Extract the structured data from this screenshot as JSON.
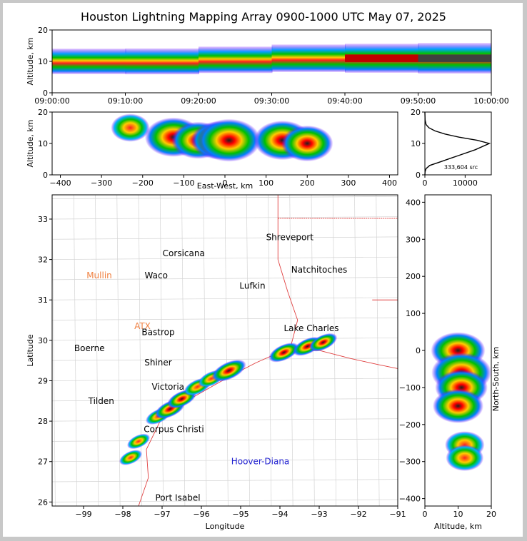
{
  "title": "Houston Lightning Mapping Array 0900-1000 UTC May 07, 2025",
  "chart_data": [
    {
      "name": "altitude-time",
      "type": "heatmap",
      "xlabel": "",
      "ylabel": "Altitude, km",
      "x_ticks": [
        "09:00:00",
        "09:10:00",
        "09:20:00",
        "09:30:00",
        "09:40:00",
        "09:50:00",
        "10:00:00"
      ],
      "xlim": [
        "09:00:00",
        "10:00:00"
      ],
      "ylim": [
        0,
        20
      ],
      "y_ticks": [
        0,
        10,
        20
      ],
      "band": [
        {
          "t": 0,
          "z": 10,
          "intensity": 0.45
        },
        {
          "t": 10,
          "z": 10,
          "intensity": 0.5
        },
        {
          "t": 20,
          "z": 10.5,
          "intensity": 0.55
        },
        {
          "t": 30,
          "z": 11,
          "intensity": 0.65
        },
        {
          "t": 40,
          "z": 11,
          "intensity": 0.8
        },
        {
          "t": 50,
          "z": 11,
          "intensity": 0.95
        },
        {
          "t": 60,
          "z": 11,
          "intensity": 1.0
        }
      ]
    },
    {
      "name": "altitude-eastwest",
      "type": "heatmap",
      "xlabel": "East-West, km",
      "ylabel": "Altitude, km",
      "xlim": [
        -420,
        420
      ],
      "ylim": [
        0,
        20
      ],
      "x_ticks": [
        -400,
        -300,
        -200,
        -100,
        0,
        100,
        200,
        300,
        400
      ],
      "y_ticks": [
        0,
        10,
        20
      ],
      "cells": [
        {
          "x": -230,
          "z": 15,
          "intensity": 0.35
        },
        {
          "x": -125,
          "z": 12,
          "intensity": 0.85
        },
        {
          "x": -65,
          "z": 11,
          "intensity": 0.75
        },
        {
          "x": -15,
          "z": 11,
          "intensity": 0.8
        },
        {
          "x": 10,
          "z": 11,
          "intensity": 1.0
        },
        {
          "x": 140,
          "z": 11,
          "intensity": 0.85
        },
        {
          "x": 200,
          "z": 10,
          "intensity": 0.7
        }
      ]
    },
    {
      "name": "altitude-histogram",
      "type": "line",
      "xlabel": "",
      "ylabel": "",
      "xlim": [
        0,
        16500
      ],
      "ylim": [
        0,
        20
      ],
      "x_ticks": [
        0,
        10000
      ],
      "y_ticks": [
        0,
        10,
        20
      ],
      "annotation": "333,604 src",
      "x": [
        0,
        50,
        300,
        1200,
        3500,
        8000,
        12500,
        16000,
        13000,
        8500,
        5000,
        2500,
        1000,
        300,
        60,
        0
      ],
      "y": [
        0,
        1,
        2,
        3,
        4,
        6,
        8,
        10,
        11,
        12,
        13,
        14,
        15,
        16,
        17.5,
        20
      ]
    },
    {
      "name": "plan-view",
      "type": "scatter",
      "xlabel": "Longitude",
      "ylabel": "Latitude",
      "xlim": [
        -99.8,
        -91
      ],
      "ylim": [
        25.9,
        33.6
      ],
      "x_ticks": [
        -99,
        -98,
        -97,
        -96,
        -95,
        -94,
        -93,
        -92,
        -91
      ],
      "y_ticks": [
        26,
        27,
        28,
        29,
        30,
        31,
        32,
        33
      ],
      "cities": [
        {
          "name": "Shreveport",
          "lon": -93.75,
          "lat": 32.55,
          "color": "#000000"
        },
        {
          "name": "Corsicana",
          "lon": -96.45,
          "lat": 32.15,
          "color": "#000000"
        },
        {
          "name": "Natchitoches",
          "lon": -93.0,
          "lat": 31.75,
          "color": "#000000"
        },
        {
          "name": "Mullin",
          "lon": -98.6,
          "lat": 31.6,
          "color": "#f08040"
        },
        {
          "name": "Waco",
          "lon": -97.15,
          "lat": 31.6,
          "color": "#000000"
        },
        {
          "name": "Lufkin",
          "lon": -94.7,
          "lat": 31.35,
          "color": "#000000"
        },
        {
          "name": "ATX",
          "lon": -97.5,
          "lat": 30.35,
          "color": "#f08040"
        },
        {
          "name": "Bastrop",
          "lon": -97.1,
          "lat": 30.2,
          "color": "#000000"
        },
        {
          "name": "Lake Charles",
          "lon": -93.2,
          "lat": 30.3,
          "color": "#000000"
        },
        {
          "name": "Boerne",
          "lon": -98.85,
          "lat": 29.8,
          "color": "#000000"
        },
        {
          "name": "Shiner",
          "lon": -97.1,
          "lat": 29.45,
          "color": "#000000"
        },
        {
          "name": "Victoria",
          "lon": -96.85,
          "lat": 28.85,
          "color": "#000000"
        },
        {
          "name": "Tilden",
          "lon": -98.55,
          "lat": 28.5,
          "color": "#000000"
        },
        {
          "name": "Corpus Christi",
          "lon": -96.7,
          "lat": 27.8,
          "color": "#000000"
        },
        {
          "name": "Hoover-Diana",
          "lon": -94.5,
          "lat": 27.0,
          "color": "#2020d0"
        },
        {
          "name": "Port Isabel",
          "lon": -96.6,
          "lat": 26.1,
          "color": "#000000"
        }
      ],
      "storm_path": [
        {
          "lon": -97.1,
          "lat": 28.12,
          "intensity": 0.55
        },
        {
          "lon": -96.8,
          "lat": 28.3,
          "intensity": 0.8
        },
        {
          "lon": -96.5,
          "lat": 28.55,
          "intensity": 0.75
        },
        {
          "lon": -96.1,
          "lat": 28.85,
          "intensity": 0.65
        },
        {
          "lon": -95.75,
          "lat": 29.05,
          "intensity": 0.6
        },
        {
          "lon": -95.3,
          "lat": 29.25,
          "intensity": 1.0
        },
        {
          "lon": -93.9,
          "lat": 29.7,
          "intensity": 0.8
        },
        {
          "lon": -93.3,
          "lat": 29.85,
          "intensity": 0.75
        },
        {
          "lon": -92.9,
          "lat": 29.95,
          "intensity": 0.7
        },
        {
          "lon": -97.6,
          "lat": 27.5,
          "intensity": 0.45
        },
        {
          "lon": -97.8,
          "lat": 27.1,
          "intensity": 0.45
        }
      ]
    },
    {
      "name": "northsouth-altitude",
      "type": "heatmap",
      "xlabel": "Altitude, km",
      "ylabel": "North-South, km",
      "xlim": [
        0,
        20
      ],
      "ylim": [
        -420,
        420
      ],
      "x_ticks": [
        0,
        10,
        20
      ],
      "y_ticks": [
        -400,
        -300,
        -200,
        -100,
        0,
        100,
        200,
        300,
        400
      ],
      "cells": [
        {
          "z": 10,
          "y": 0,
          "intensity": 0.85
        },
        {
          "z": 11,
          "y": -60,
          "intensity": 1.0
        },
        {
          "z": 11,
          "y": -100,
          "intensity": 0.8
        },
        {
          "z": 10,
          "y": -150,
          "intensity": 0.75
        },
        {
          "z": 12,
          "y": -255,
          "intensity": 0.45
        },
        {
          "z": 12,
          "y": -290,
          "intensity": 0.4
        }
      ]
    }
  ],
  "colors": {
    "low": "#8000ff",
    "mid": "#00c000",
    "high": "#ff0000",
    "peak": "#303030"
  }
}
